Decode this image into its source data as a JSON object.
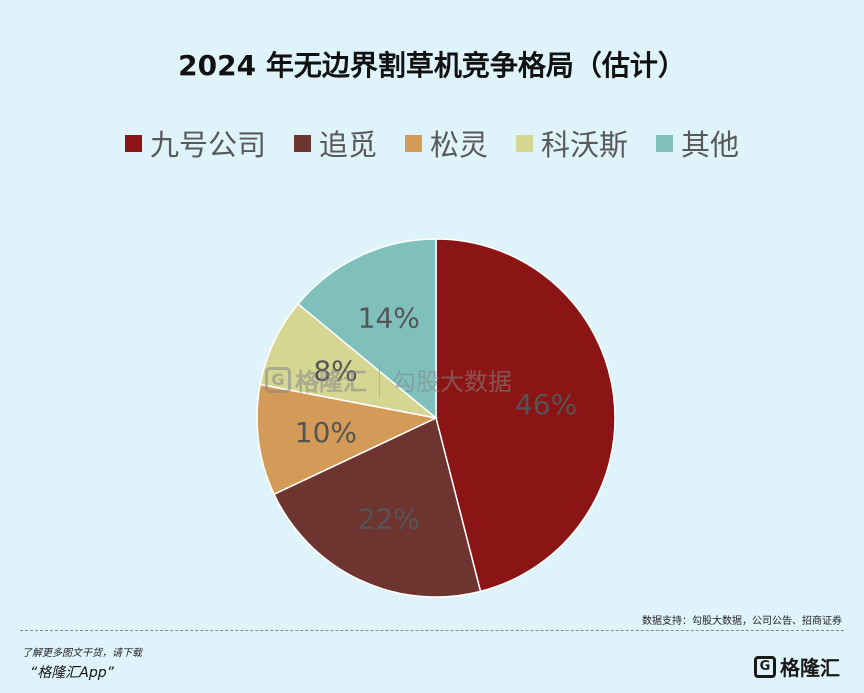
{
  "chart_data": {
    "type": "pie",
    "title": "2024 年无边界割草机竞争格局（估计）",
    "legend_position": "top",
    "slices": [
      {
        "name": "九号公司",
        "value": 46,
        "label": "46%",
        "color": "#8b1414"
      },
      {
        "name": "追觅",
        "value": 22,
        "label": "22%",
        "color": "#6e3530"
      },
      {
        "name": "松灵",
        "value": 10,
        "label": "10%",
        "color": "#d49a57"
      },
      {
        "name": "科沃斯",
        "value": 8,
        "label": "8%",
        "color": "#d4d692"
      },
      {
        "name": "其他",
        "value": 14,
        "label": "14%",
        "color": "#7fc0bd"
      }
    ]
  },
  "watermark": {
    "logo_text": "格隆汇",
    "source_text": "勾股大数据"
  },
  "source": "数据支持：勾股大数据，公司公告、招商证券",
  "footer": {
    "note": "了解更多图文干货，请下载",
    "app": "“格隆汇App”",
    "brand": "格隆汇"
  }
}
